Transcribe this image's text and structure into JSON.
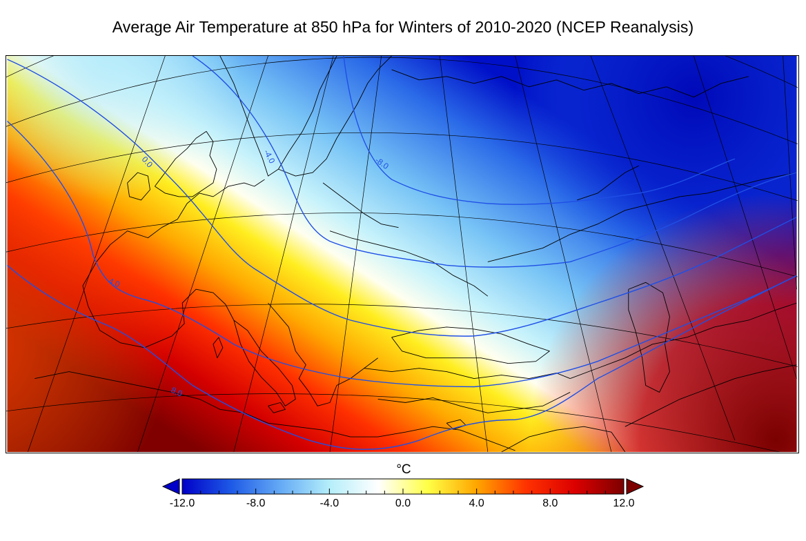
{
  "title": "Average Air Temperature at 850 hPa for Winters of 2010-2020 (NCEP Reanalysis)",
  "map": {
    "contour_labels": [
      "0.0",
      "-4.0",
      "-8.0",
      "4.0",
      "8.0"
    ],
    "contour_color": "#1f4fe6",
    "projection_note": "Lambert-style conic projection over Europe, North Africa and the Middle East"
  },
  "colorbar": {
    "unit": "°C",
    "min": -12.0,
    "max": 12.0,
    "extend": "both",
    "tick_labels": [
      "-12.0",
      "-8.0",
      "-4.0",
      "0.0",
      "4.0",
      "8.0",
      "12.0"
    ],
    "tick_values": [
      -12,
      -8,
      -4,
      0,
      4,
      8,
      12
    ],
    "color_stops": [
      "#0000c8",
      "#1e5ae6",
      "#64aaf5",
      "#b4eefa",
      "#ffffff",
      "#ffff46",
      "#ffa500",
      "#ff3200",
      "#dc0000",
      "#7d0000"
    ],
    "under_color": "#0000c8",
    "over_color": "#7d0000"
  }
}
